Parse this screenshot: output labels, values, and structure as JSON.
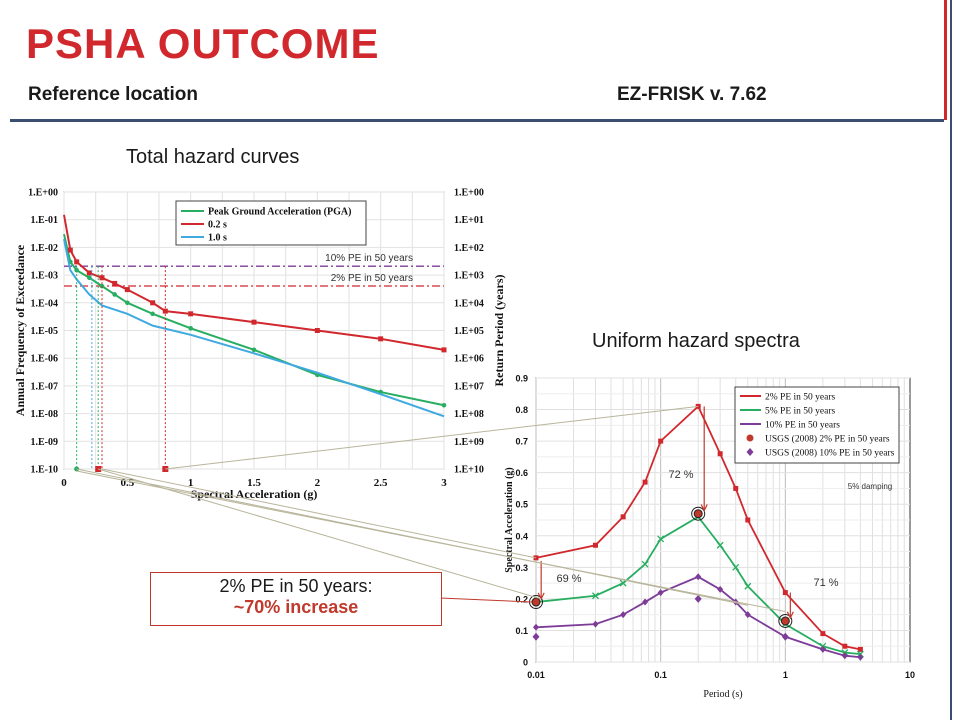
{
  "header": {
    "title": "PSHA OUTCOME",
    "left_subtitle": "Reference location",
    "right_subtitle": "EZ-FRISK v. 7.62"
  },
  "captions": {
    "left": "Total hazard curves",
    "right": "Uniform hazard spectra"
  },
  "callout": {
    "line1": "2% PE in 50 years:",
    "line2": "~70% increase"
  },
  "colors": {
    "red": "#d1282e",
    "green": "#27ae60",
    "blue": "#3fa9e0",
    "purple": "#7d3c98",
    "navy": "#3b4e70"
  },
  "chart_data": [
    {
      "type": "line",
      "title": "Total hazard curves",
      "xlabel": "Spectral Acceleration (g)",
      "ylabel": "Annual Frequency of Exceedance",
      "y2label": "Return Period (years)",
      "xlim": [
        0,
        3
      ],
      "ylim": [
        1e-10,
        1
      ],
      "yscale": "log",
      "xticks": [
        "0",
        "0.5",
        "1",
        "1.5",
        "2",
        "2.5",
        "3"
      ],
      "yticks": [
        "1.E+00",
        "1.E-01",
        "1.E-02",
        "1.E-03",
        "1.E-04",
        "1.E-05",
        "1.E-06",
        "1.E-07",
        "1.E-08",
        "1.E-09",
        "1.E-10"
      ],
      "y2ticks": [
        "1.E+00",
        "1.E+01",
        "1.E+02",
        "1.E+03",
        "1.E+04",
        "1.E+05",
        "1.E+06",
        "1.E+07",
        "1.E+08",
        "1.E+09",
        "1.E+10"
      ],
      "legend_position": "top-right",
      "series": [
        {
          "name": "Peak Ground Acceleration (PGA)",
          "color": "#27ae60",
          "x": [
            0.0,
            0.05,
            0.1,
            0.2,
            0.3,
            0.4,
            0.5,
            0.7,
            1.0,
            1.5,
            2.0,
            2.5,
            3.0
          ],
          "y": [
            0.03,
            0.003,
            0.0015,
            0.0008,
            0.0004,
            0.0002,
            0.0001,
            4e-05,
            1.2e-05,
            2e-06,
            2.5e-07,
            6e-08,
            2e-08
          ]
        },
        {
          "name": "0.2 s",
          "color": "#d1282e",
          "x": [
            0.0,
            0.05,
            0.1,
            0.2,
            0.3,
            0.4,
            0.5,
            0.7,
            0.8,
            1.0,
            1.5,
            2.0,
            2.5,
            3.0
          ],
          "y": [
            0.15,
            0.008,
            0.003,
            0.0012,
            0.0008,
            0.0005,
            0.0003,
            0.0001,
            5e-05,
            4e-05,
            2e-05,
            1e-05,
            5e-06,
            2e-06
          ]
        },
        {
          "name": "1.0 s",
          "color": "#3fa9e0",
          "x": [
            0.0,
            0.05,
            0.1,
            0.2,
            0.3,
            0.5,
            0.7,
            1.0,
            1.5,
            2.0,
            2.5,
            3.0
          ],
          "y": [
            0.02,
            0.0015,
            0.0007,
            0.0002,
            8e-05,
            4e-05,
            1.5e-05,
            7e-06,
            1.5e-06,
            3e-07,
            5e-08,
            8e-09
          ]
        }
      ],
      "hlines": [
        {
          "label": "10% PE in 50 years",
          "y": 0.0021,
          "color": "#7d3c98"
        },
        {
          "label": "2% PE in 50 years",
          "y": 0.000404,
          "color": "#d1282e"
        }
      ]
    },
    {
      "type": "line",
      "title": "Uniform hazard spectra",
      "xlabel": "Period (s)",
      "ylabel": "Spectral Acceleration (g)",
      "xscale": "log",
      "xlim": [
        0.01,
        10
      ],
      "ylim": [
        0,
        0.9
      ],
      "xticks": [
        "0.01",
        "0.1",
        "1",
        "10"
      ],
      "yticks": [
        "0",
        "0.1",
        "0.2",
        "0.3",
        "0.4",
        "0.5",
        "0.6",
        "0.7",
        "0.8",
        "0.9"
      ],
      "legend_position": "top-right",
      "annotation": "5% damping",
      "series": [
        {
          "name": "2% PE in 50 years",
          "color": "#d1282e",
          "x": [
            0.01,
            0.03,
            0.05,
            0.075,
            0.1,
            0.2,
            0.3,
            0.4,
            0.5,
            1.0,
            2.0,
            3.0,
            4.0
          ],
          "y": [
            0.33,
            0.37,
            0.46,
            0.57,
            0.7,
            0.81,
            0.66,
            0.55,
            0.45,
            0.22,
            0.09,
            0.05,
            0.04
          ]
        },
        {
          "name": "5% PE in 50 years",
          "color": "#27ae60",
          "x": [
            0.01,
            0.03,
            0.05,
            0.075,
            0.1,
            0.2,
            0.3,
            0.4,
            0.5,
            1.0,
            2.0,
            3.0,
            4.0
          ],
          "y": [
            0.19,
            0.21,
            0.25,
            0.31,
            0.39,
            0.46,
            0.37,
            0.3,
            0.24,
            0.12,
            0.05,
            0.03,
            0.025
          ]
        },
        {
          "name": "10% PE in 50 years",
          "color": "#7d3c98",
          "x": [
            0.01,
            0.03,
            0.05,
            0.075,
            0.1,
            0.2,
            0.3,
            0.4,
            0.5,
            1.0,
            2.0,
            3.0,
            4.0
          ],
          "y": [
            0.11,
            0.12,
            0.15,
            0.19,
            0.22,
            0.27,
            0.23,
            0.19,
            0.15,
            0.08,
            0.04,
            0.02,
            0.015
          ]
        },
        {
          "name": "USGS (2008) 2% PE in 50 years",
          "color": "#c0392b",
          "marker": "circle",
          "x": [
            0.01,
            0.2,
            1.0
          ],
          "y": [
            0.19,
            0.47,
            0.13
          ]
        },
        {
          "name": "USGS (2008) 10% PE in 50 years",
          "color": "#7d3c98",
          "marker": "diamond",
          "x": [
            0.01,
            0.2,
            1.0
          ],
          "y": [
            0.08,
            0.2,
            0.08
          ]
        }
      ],
      "increase_labels": [
        {
          "text": "69 %"
        },
        {
          "text": "72 %"
        },
        {
          "text": "71 %"
        }
      ]
    }
  ]
}
